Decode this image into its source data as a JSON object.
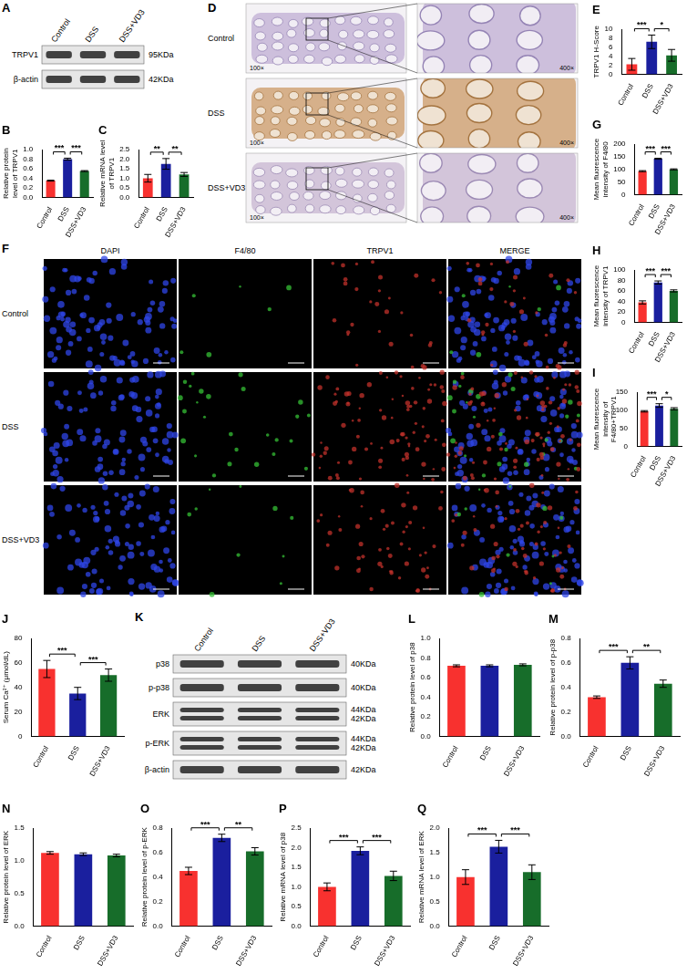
{
  "chart_data": [
    {
      "panel": "B",
      "type": "bar",
      "categories": [
        "Control",
        "DSS",
        "DSS+VD3"
      ],
      "values": [
        0.35,
        0.8,
        0.55
      ],
      "errors": [
        0.01,
        0.02,
        0.01
      ],
      "colors": [
        "#f8312f",
        "#1a1f9e",
        "#176d2a"
      ],
      "y_label": "Relative protein level of TRPV1",
      "ylim": [
        0,
        1
      ],
      "yticks": [
        {
          "value": 0,
          "label": "0.0"
        },
        0.2,
        0.4,
        0.6,
        0.8,
        {
          "value": 1,
          "label": "1.0"
        }
      ],
      "annotations": [
        {
          "text": "***",
          "from": "Control",
          "to": "DSS"
        },
        {
          "text": "***",
          "from": "DSS",
          "to": "DSS+VD3"
        }
      ]
    },
    {
      "panel": "C",
      "type": "bar",
      "categories": [
        "Control",
        "DSS",
        "DSS+VD3"
      ],
      "values": [
        1.0,
        1.75,
        1.2
      ],
      "errors": [
        0.2,
        0.28,
        0.1
      ],
      "colors": [
        "#f8312f",
        "#1a1f9e",
        "#176d2a"
      ],
      "y_label": "Relative mRNA level of TRPV1",
      "ylim": [
        0,
        2.5
      ],
      "yticks": [
        {
          "value": 0,
          "label": "0.0"
        },
        0.5,
        {
          "value": 1,
          "label": "1.0"
        },
        1.5,
        {
          "value": 2,
          "label": "2.0"
        },
        2.5
      ],
      "annotations": [
        {
          "text": "**",
          "from": "Control",
          "to": "DSS"
        },
        {
          "text": "**",
          "from": "DSS",
          "to": "DSS+VD3"
        }
      ]
    },
    {
      "panel": "E",
      "type": "bar",
      "categories": [
        "Control",
        "DSS",
        "DSS+VD3"
      ],
      "values": [
        2.2,
        7.2,
        4.2
      ],
      "errors": [
        1.3,
        1.5,
        1.3
      ],
      "colors": [
        "#f8312f",
        "#1a1f9e",
        "#176d2a"
      ],
      "y_label": "TRPV1 H-Score",
      "ylim": [
        0,
        10
      ],
      "yticks": [
        0,
        2,
        4,
        6,
        8,
        10
      ],
      "annotations": [
        {
          "text": "***",
          "from": "Control",
          "to": "DSS"
        },
        {
          "text": "*",
          "from": "DSS",
          "to": "DSS+VD3"
        }
      ]
    },
    {
      "panel": "G",
      "type": "bar",
      "categories": [
        "Control",
        "DSS",
        "DSS+VD3"
      ],
      "values": [
        93,
        142,
        100
      ],
      "errors": [
        2,
        2,
        2
      ],
      "colors": [
        "#f8312f",
        "#1a1f9e",
        "#176d2a"
      ],
      "y_label": "Mean fluorescence intensity of F4/80",
      "ylim": [
        0,
        200
      ],
      "yticks": [
        0,
        50,
        100,
        150,
        200
      ],
      "annotations": [
        {
          "text": "***",
          "from": "Control",
          "to": "DSS"
        },
        {
          "text": "***",
          "from": "DSS",
          "to": "DSS+VD3"
        }
      ]
    },
    {
      "panel": "H",
      "type": "bar",
      "categories": [
        "Control",
        "DSS",
        "DSS+VD3"
      ],
      "values": [
        38,
        76,
        60
      ],
      "errors": [
        3,
        3,
        2
      ],
      "colors": [
        "#f8312f",
        "#1a1f9e",
        "#176d2a"
      ],
      "y_label": "Mean fluorescence intensity of TRPV1",
      "ylim": [
        0,
        100
      ],
      "yticks": [
        0,
        20,
        40,
        60,
        80,
        100
      ],
      "annotations": [
        {
          "text": "***",
          "from": "Control",
          "to": "DSS"
        },
        {
          "text": "***",
          "from": "DSS",
          "to": "DSS+VD3"
        }
      ]
    },
    {
      "panel": "I",
      "type": "bar",
      "categories": [
        "Control",
        "DSS",
        "DSS+VD3"
      ],
      "values": [
        97,
        113,
        104
      ],
      "errors": [
        2,
        5,
        3
      ],
      "colors": [
        "#f8312f",
        "#1a1f9e",
        "#176d2a"
      ],
      "y_label": "Mean fluorescence intensity of F4/80+TRPV1",
      "ylim": [
        0,
        150
      ],
      "yticks": [
        0,
        50,
        100,
        150
      ],
      "annotations": [
        {
          "text": "***",
          "from": "Control",
          "to": "DSS"
        },
        {
          "text": "*",
          "from": "DSS",
          "to": "DSS+VD3"
        }
      ]
    },
    {
      "panel": "J",
      "type": "bar",
      "categories": [
        "Control",
        "DSS",
        "DSS+VD3"
      ],
      "values": [
        55,
        35,
        50
      ],
      "errors": [
        7,
        5,
        5
      ],
      "colors": [
        "#f8312f",
        "#1a1f9e",
        "#176d2a"
      ],
      "y_label": "Serum Ca²⁺ (μmol/dL)",
      "ylim": [
        0,
        80
      ],
      "yticks": [
        0,
        20,
        40,
        60,
        80
      ],
      "annotations": [
        {
          "text": "***",
          "from": "Control",
          "to": "DSS"
        },
        {
          "text": "***",
          "from": "DSS",
          "to": "DSS+VD3"
        }
      ]
    },
    {
      "panel": "L",
      "type": "bar",
      "categories": [
        "Control",
        "DSS",
        "DSS+VD3"
      ],
      "values": [
        0.72,
        0.72,
        0.73
      ],
      "errors": [
        0.01,
        0.01,
        0.01
      ],
      "colors": [
        "#f8312f",
        "#1a1f9e",
        "#176d2a"
      ],
      "y_label": "Relative protein level of p38",
      "ylim": [
        0,
        1
      ],
      "yticks": [
        {
          "value": 0,
          "label": "0.0"
        },
        0.2,
        0.4,
        0.6,
        0.8,
        {
          "value": 1,
          "label": "1.0"
        }
      ],
      "annotations": []
    },
    {
      "panel": "M",
      "type": "bar",
      "categories": [
        "Control",
        "DSS",
        "DSS+VD3"
      ],
      "values": [
        0.32,
        0.6,
        0.43
      ],
      "errors": [
        0.01,
        0.05,
        0.03
      ],
      "colors": [
        "#f8312f",
        "#1a1f9e",
        "#176d2a"
      ],
      "y_label": "Relative protein level of p-p38",
      "ylim": [
        0,
        0.8
      ],
      "yticks": [
        {
          "value": 0,
          "label": "0.0"
        },
        0.2,
        0.4,
        0.6,
        0.8
      ],
      "annotations": [
        {
          "text": "***",
          "from": "Control",
          "to": "DSS"
        },
        {
          "text": "**",
          "from": "DSS",
          "to": "DSS+VD3"
        }
      ]
    },
    {
      "panel": "N",
      "type": "bar",
      "categories": [
        "Control",
        "DSS",
        "DSS+VD3"
      ],
      "values": [
        1.12,
        1.1,
        1.08
      ],
      "errors": [
        0.02,
        0.02,
        0.02
      ],
      "colors": [
        "#f8312f",
        "#1a1f9e",
        "#176d2a"
      ],
      "y_label": "Relative protein level of ERK",
      "ylim": [
        0,
        1.5
      ],
      "yticks": [
        {
          "value": 0,
          "label": "0.0"
        },
        0.5,
        {
          "value": 1,
          "label": "1.0"
        },
        1.5
      ],
      "annotations": []
    },
    {
      "panel": "O",
      "type": "bar",
      "categories": [
        "Control",
        "DSS",
        "DSS+VD3"
      ],
      "values": [
        0.45,
        0.72,
        0.61
      ],
      "errors": [
        0.03,
        0.03,
        0.03
      ],
      "colors": [
        "#f8312f",
        "#1a1f9e",
        "#176d2a"
      ],
      "y_label": "Relative protein level of p-ERK",
      "ylim": [
        0,
        0.8
      ],
      "yticks": [
        {
          "value": 0,
          "label": "0.0"
        },
        0.2,
        0.4,
        0.6,
        0.8
      ],
      "annotations": [
        {
          "text": "***",
          "from": "Control",
          "to": "DSS"
        },
        {
          "text": "**",
          "from": "DSS",
          "to": "DSS+VD3"
        }
      ]
    },
    {
      "panel": "P",
      "type": "bar",
      "categories": [
        "Control",
        "DSS",
        "DSS+VD3"
      ],
      "values": [
        1.0,
        1.92,
        1.28
      ],
      "errors": [
        0.1,
        0.1,
        0.12
      ],
      "colors": [
        "#f8312f",
        "#1a1f9e",
        "#176d2a"
      ],
      "y_label": "Relative mRNA level of p38",
      "ylim": [
        0,
        2.5
      ],
      "yticks": [
        {
          "value": 0,
          "label": "0.0"
        },
        0.5,
        {
          "value": 1,
          "label": "1.0"
        },
        1.5,
        {
          "value": 2,
          "label": "2.0"
        },
        2.5
      ],
      "annotations": [
        {
          "text": "***",
          "from": "Control",
          "to": "DSS"
        },
        {
          "text": "***",
          "from": "DSS",
          "to": "DSS+VD3"
        }
      ]
    },
    {
      "panel": "Q",
      "type": "bar",
      "categories": [
        "Control",
        "DSS",
        "DSS+VD3"
      ],
      "values": [
        1.0,
        1.62,
        1.1
      ],
      "errors": [
        0.15,
        0.13,
        0.15
      ],
      "colors": [
        "#f8312f",
        "#1a1f9e",
        "#176d2a"
      ],
      "y_label": "Relative mRNA level of ERK",
      "ylim": [
        0,
        2
      ],
      "yticks": [
        {
          "value": 0,
          "label": "0.0"
        },
        0.5,
        {
          "value": 1,
          "label": "1.0"
        },
        1.5,
        {
          "value": 2,
          "label": "2.0"
        }
      ],
      "annotations": [
        {
          "text": "***",
          "from": "Control",
          "to": "DSS"
        },
        {
          "text": "***",
          "from": "DSS",
          "to": "DSS+VD3"
        }
      ]
    }
  ],
  "figure": {
    "blots": [
      {
        "panel": "A",
        "lanes": [
          "Control",
          "DSS",
          "DSS+VD3"
        ],
        "rows": [
          {
            "name": "TRPV1",
            "sizes": [
              "95KDa"
            ]
          },
          {
            "name": "β-actin",
            "sizes": [
              "42KDa"
            ]
          }
        ]
      },
      {
        "panel": "K",
        "lanes": [
          "Control",
          "DSS",
          "DSS+VD3"
        ],
        "rows": [
          {
            "name": "p38",
            "sizes": [
              "40KDa"
            ]
          },
          {
            "name": "p-p38",
            "sizes": [
              "40KDa"
            ]
          },
          {
            "name": "ERK",
            "sizes": [
              "44KDa",
              "42KDa"
            ]
          },
          {
            "name": "p-ERK",
            "sizes": [
              "44KDa",
              "42KDa"
            ]
          },
          {
            "name": "β-actin",
            "sizes": [
              "42KDa"
            ]
          }
        ]
      }
    ],
    "ihc": {
      "panel": "D",
      "rows": [
        "Control",
        "DSS",
        "DSS+VD3"
      ],
      "magnifications": [
        "100×",
        "400×"
      ]
    },
    "immunofluorescence": {
      "panel": "F",
      "columns": [
        "DAPI",
        "F4/80",
        "TRPV1",
        "MERGE"
      ],
      "rows": [
        "Control",
        "DSS",
        "DSS+VD3"
      ]
    }
  }
}
